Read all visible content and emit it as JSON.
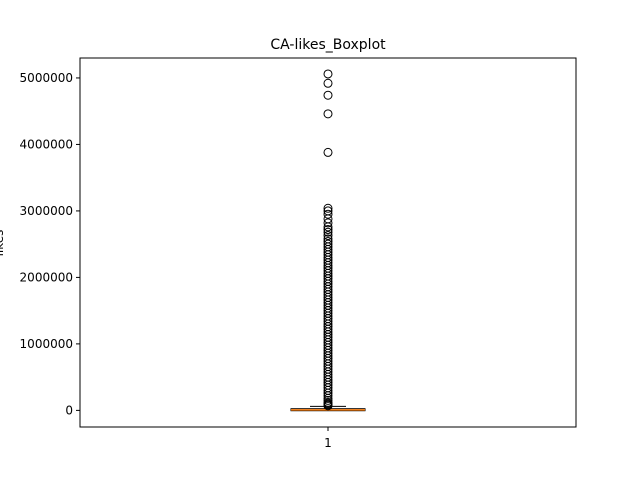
{
  "chart_data": {
    "type": "boxplot",
    "title": "CA-likes_Boxplot",
    "xlabel": "",
    "ylabel": "likes",
    "categories": [
      "1"
    ],
    "ylim": [
      -250000,
      5300000
    ],
    "yticks": [
      0,
      1000000,
      2000000,
      3000000,
      4000000,
      5000000
    ],
    "ytick_labels": [
      "0",
      "1000000",
      "2000000",
      "3000000",
      "4000000",
      "5000000"
    ],
    "grid": false,
    "box": {
      "whisker_low": 0,
      "q1": 2000,
      "median": 8000,
      "q3": 25000,
      "whisker_high": 60000
    },
    "outliers": [
      5060000,
      4920000,
      4740000,
      4460000,
      3880000,
      3040000,
      3000000,
      2950000,
      2880000,
      2820000,
      2760000,
      2720000,
      2680000,
      2630000,
      2580000,
      2540000,
      2500000,
      2460000,
      2420000,
      2380000,
      2340000,
      2300000,
      2260000,
      2220000,
      2180000,
      2140000,
      2100000,
      2060000,
      2020000,
      1980000,
      1940000,
      1900000,
      1860000,
      1820000,
      1780000,
      1740000,
      1700000,
      1660000,
      1620000,
      1580000,
      1540000,
      1500000,
      1460000,
      1420000,
      1380000,
      1340000,
      1300000,
      1260000,
      1220000,
      1180000,
      1140000,
      1100000,
      1060000,
      1020000,
      980000,
      940000,
      900000,
      860000,
      820000,
      780000,
      740000,
      700000,
      660000,
      620000,
      580000,
      540000,
      500000,
      460000,
      420000,
      380000,
      340000,
      300000,
      260000,
      220000,
      180000,
      150000,
      120000,
      100000,
      85000,
      70000
    ],
    "colors": {
      "box": "#000000",
      "median": "#ff7f0e",
      "outlier_edge": "#000000"
    }
  }
}
